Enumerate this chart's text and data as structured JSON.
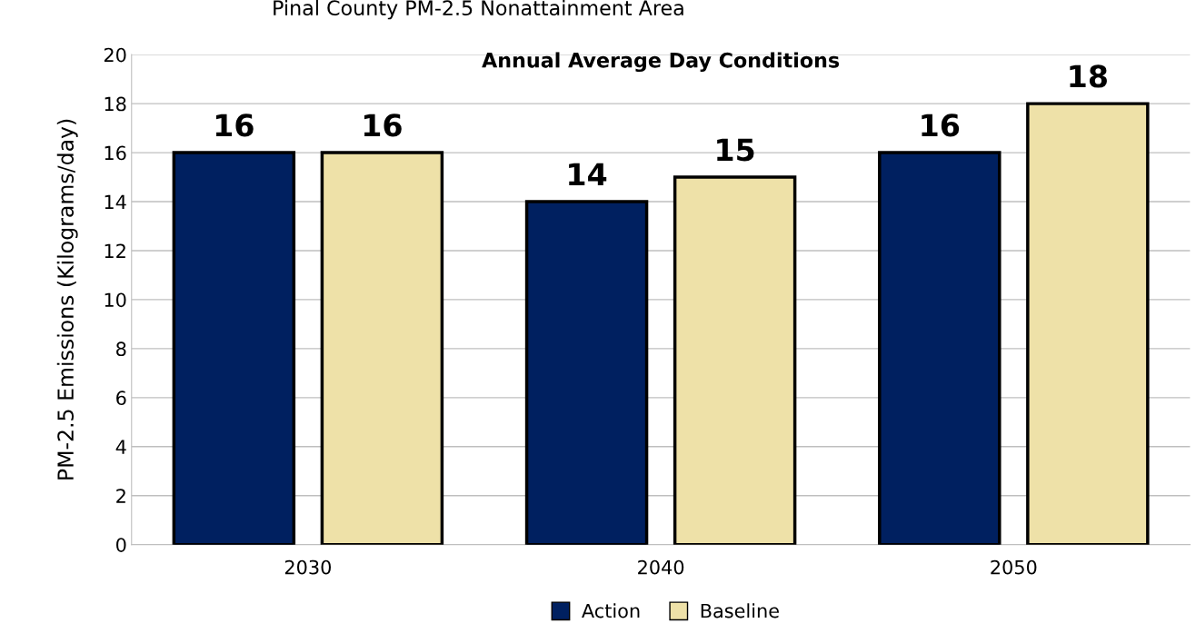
{
  "chart_data": {
    "type": "bar",
    "title": "Pinal County PM-2.5 Nonattainment Area",
    "subtitle": "Annual Average Day Conditions",
    "ylabel": "PM-2.5 Emissions (Kilograms/day)",
    "categories": [
      "2030",
      "2040",
      "2050"
    ],
    "series": [
      {
        "name": "Action",
        "color": "#002060",
        "values": [
          16,
          14,
          16
        ]
      },
      {
        "name": "Baseline",
        "color": "#eee1a8",
        "values": [
          16,
          15,
          18
        ]
      }
    ],
    "ylim": [
      0,
      20
    ],
    "yticks": [
      0,
      2,
      4,
      6,
      8,
      10,
      12,
      14,
      16,
      18,
      20
    ],
    "grid": "y",
    "legend": "bottom",
    "data_labels": true
  }
}
